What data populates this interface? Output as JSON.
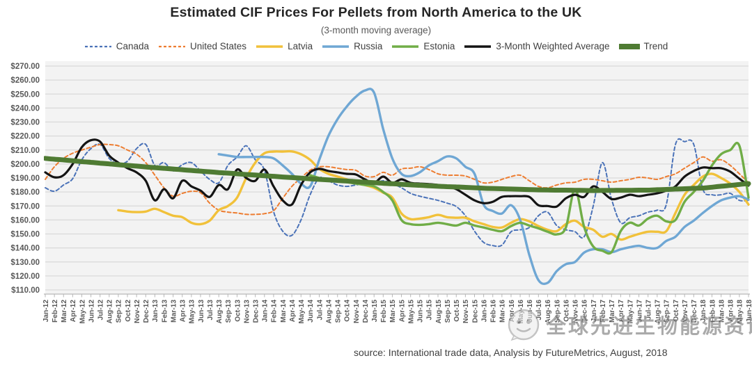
{
  "watermark": {
    "text": "全球先进生物能源资讯"
  },
  "chart_data": {
    "type": "line",
    "title": "Estimated CIF Prices For Pellets from North America to the UK",
    "subtitle": "(3-month moving average)",
    "source": "source: International trade data, Analysis by FutureMetrics, August, 2018",
    "legend_position": "top",
    "grid": true,
    "colors": {
      "plot_background": "#f3f3f3",
      "gridline": "#d9d9d9",
      "axis": "#b7b7b7",
      "tick_label": "#595959",
      "title": "#262626"
    },
    "y_axis": {
      "min": 110,
      "max": 270,
      "step": 10,
      "currency": "USD",
      "tick_labels": [
        "$270.00",
        "$260.00",
        "$250.00",
        "$240.00",
        "$230.00",
        "$220.00",
        "$210.00",
        "$200.00",
        "$190.00",
        "$180.00",
        "$170.00",
        "$160.00",
        "$150.00",
        "$140.00",
        "$130.00",
        "$120.00",
        "$110.00"
      ]
    },
    "x_labels": [
      "Jan-12",
      "Feb-12",
      "Mar-12",
      "Apr-12",
      "May-12",
      "Jun-12",
      "Jul-12",
      "Aug-12",
      "Sep-12",
      "Oct-12",
      "Nov-12",
      "Dec-12",
      "Jan-13",
      "Feb-13",
      "Mar-13",
      "Apr-13",
      "May-13",
      "Jun-13",
      "Jul-13",
      "Aug-13",
      "Sep-13",
      "Oct-13",
      "Nov-13",
      "Dec-13",
      "Jan-14",
      "Feb-14",
      "Mar-14",
      "Apr-14",
      "May-14",
      "Jun-14",
      "Jul-14",
      "Aug-14",
      "Sep-14",
      "Oct-14",
      "Nov-14",
      "Dec-14",
      "Jan-15",
      "Feb-15",
      "Mar-15",
      "Apr-15",
      "May-15",
      "Jun-15",
      "Jul-15",
      "Aug-15",
      "Sep-15",
      "Oct-15",
      "Nov-15",
      "Dec-15",
      "Jan-16",
      "Feb-16",
      "Mar-16",
      "Apr-16",
      "May-16",
      "Jun-16",
      "Jul-16",
      "Aug-16",
      "Sep-16",
      "Oct-16",
      "Nov-16",
      "Dec-16",
      "Jan-17",
      "Feb-17",
      "Mar-17",
      "Apr-17",
      "May-17",
      "Jun-17",
      "Jul-17",
      "Aug-17",
      "Sep-17",
      "Oct-17",
      "Nov-17",
      "Dec-17",
      "Jan-18",
      "Feb-18",
      "Mar-18",
      "Apr-18",
      "May-18",
      "Jun-18"
    ],
    "series": [
      {
        "name": "Canada",
        "color": "#4a72b8",
        "dash": true,
        "width": 2,
        "values": [
          183,
          180.5,
          185,
          189.5,
          203,
          211,
          214,
          204,
          200,
          202,
          211,
          214,
          199,
          201,
          195,
          199.5,
          201,
          195,
          189,
          186.6,
          199,
          205,
          213,
          203,
          195.5,
          166,
          152,
          149,
          160,
          178,
          190,
          188,
          185,
          184,
          185,
          186,
          186,
          188,
          186,
          183,
          179,
          177,
          175.5,
          174,
          172,
          169.6,
          163,
          152,
          144,
          141.7,
          142,
          151.6,
          153,
          154.6,
          163,
          165.6,
          156,
          153,
          151.6,
          148,
          170,
          201,
          175,
          158,
          161.6,
          163,
          165.6,
          167,
          171,
          214,
          216,
          214,
          182,
          178,
          178,
          179,
          174,
          174
        ]
      },
      {
        "name": "United States",
        "color": "#ed7d31",
        "dash": true,
        "width": 2,
        "values": [
          189,
          198,
          204,
          207.7,
          210,
          212,
          213.9,
          213.9,
          213,
          210,
          207,
          201,
          192,
          183,
          177,
          179,
          180.5,
          179.5,
          172,
          167,
          165.6,
          165,
          164,
          164,
          164.5,
          166.6,
          175.5,
          184,
          190,
          195.5,
          198,
          198,
          197,
          196,
          195.5,
          191.4,
          191,
          194,
          192,
          196.4,
          197,
          198,
          196,
          193,
          192,
          192,
          191.4,
          189,
          186.5,
          187,
          189,
          191,
          192,
          188,
          184,
          183,
          185,
          186.5,
          187,
          189,
          189,
          188,
          187,
          188,
          189,
          190.5,
          190,
          189,
          191,
          193,
          197,
          201,
          205,
          202,
          203,
          199,
          193,
          186.5
        ]
      },
      {
        "name": "Latvia",
        "color": "#f1c13a",
        "dash": false,
        "width": 3.4,
        "values": [
          null,
          null,
          null,
          null,
          null,
          null,
          null,
          null,
          167,
          166,
          165.6,
          166,
          168,
          165.6,
          163,
          162,
          158,
          157,
          159.5,
          167,
          170,
          176,
          190,
          201,
          207.7,
          208.9,
          208.9,
          209,
          207,
          203,
          196.5,
          193,
          191,
          189,
          187,
          185,
          183,
          179.5,
          176,
          164.6,
          160.6,
          161,
          162,
          163.6,
          162,
          161.6,
          161.6,
          159,
          157,
          155,
          154.6,
          158,
          160.6,
          159,
          155.6,
          153,
          152,
          157,
          159.5,
          155,
          153,
          148,
          150,
          146,
          148,
          150,
          151.6,
          151.6,
          152,
          165,
          178,
          185,
          191,
          193,
          190,
          186,
          180,
          171
        ]
      },
      {
        "name": "Russia",
        "color": "#6fa7d4",
        "dash": false,
        "width": 3.4,
        "values": [
          null,
          null,
          null,
          null,
          null,
          null,
          null,
          null,
          null,
          null,
          null,
          null,
          null,
          null,
          null,
          null,
          null,
          null,
          null,
          207,
          206,
          205,
          205,
          205,
          205,
          204,
          199,
          193,
          186,
          184,
          203,
          220,
          232,
          241,
          248,
          252.5,
          251,
          225,
          204,
          193,
          191.4,
          194,
          199,
          202,
          205.4,
          204,
          198,
          193,
          171,
          166.4,
          164.6,
          170.5,
          160,
          135,
          117,
          115,
          123.4,
          128.4,
          130,
          136.7,
          139,
          139,
          137,
          139,
          140.5,
          141.5,
          140,
          140,
          145,
          148,
          155,
          159.5,
          165,
          170,
          174,
          176,
          177,
          174.5
        ]
      },
      {
        "name": "Estonia",
        "color": "#70ad47",
        "dash": false,
        "width": 3.4,
        "values": [
          null,
          null,
          null,
          null,
          null,
          null,
          null,
          null,
          null,
          null,
          null,
          null,
          null,
          null,
          null,
          null,
          null,
          null,
          null,
          null,
          null,
          null,
          null,
          null,
          null,
          null,
          null,
          null,
          null,
          192,
          190,
          189,
          188,
          187,
          186,
          185,
          184,
          180,
          174,
          160,
          157,
          156.5,
          157,
          158,
          157,
          156,
          158,
          156,
          154.6,
          153,
          152,
          155.6,
          158,
          156,
          154,
          151.6,
          149.7,
          154.6,
          182,
          155,
          141,
          138,
          137,
          152,
          158,
          156,
          161,
          163,
          159,
          160,
          173,
          180,
          188,
          199,
          207,
          210,
          213,
          176
        ]
      },
      {
        "name": "3-Month Weighted Average",
        "color": "#141414",
        "dash": false,
        "width": 3.2,
        "values": [
          194,
          190.5,
          192,
          200,
          212,
          217,
          216,
          206,
          201,
          197,
          194,
          188,
          174,
          182,
          175.5,
          188,
          184,
          181,
          176.5,
          185,
          182,
          196,
          190,
          188,
          196,
          184,
          174,
          171,
          185,
          194,
          196.5,
          195,
          194,
          193,
          192.5,
          189,
          186.5,
          191,
          186.5,
          189,
          186.5,
          186,
          185.6,
          185,
          184,
          182,
          178,
          174,
          172,
          173,
          176.5,
          177,
          177,
          176.5,
          170.5,
          170,
          169.6,
          175.5,
          178,
          176.5,
          184,
          180,
          175,
          176,
          178,
          177,
          178,
          179,
          181,
          184,
          191,
          195,
          197.5,
          197,
          197,
          194.5,
          189.5,
          184.6
        ]
      },
      {
        "name": "Trend",
        "color": "#4f7b33",
        "dash": false,
        "width": 7,
        "values": [
          204,
          203.4,
          202.9,
          202.3,
          201.7,
          201.2,
          200.6,
          200.1,
          199.5,
          199,
          198.5,
          197.9,
          197.4,
          196.9,
          196.4,
          195.9,
          195.4,
          194.9,
          194.4,
          193.9,
          193.5,
          193,
          192.5,
          192.1,
          191.6,
          191.2,
          190.7,
          190.3,
          189.9,
          189.4,
          189,
          188.6,
          188.2,
          187.8,
          187.4,
          187,
          186.6,
          186.2,
          185.9,
          185.5,
          185.1,
          184.8,
          184.4,
          184.1,
          183.8,
          183.6,
          183.3,
          183,
          182.7,
          182.5,
          182.3,
          182.1,
          181.9,
          181.7,
          181.5,
          181.4,
          181.3,
          181.3,
          181.2,
          181.1,
          181,
          181.1,
          181.1,
          181.2,
          181.2,
          181.3,
          181.3,
          181.6,
          181.8,
          182.1,
          182.3,
          182.6,
          182.8,
          183.4,
          184.1,
          184.7,
          185.4,
          186
        ]
      }
    ]
  }
}
